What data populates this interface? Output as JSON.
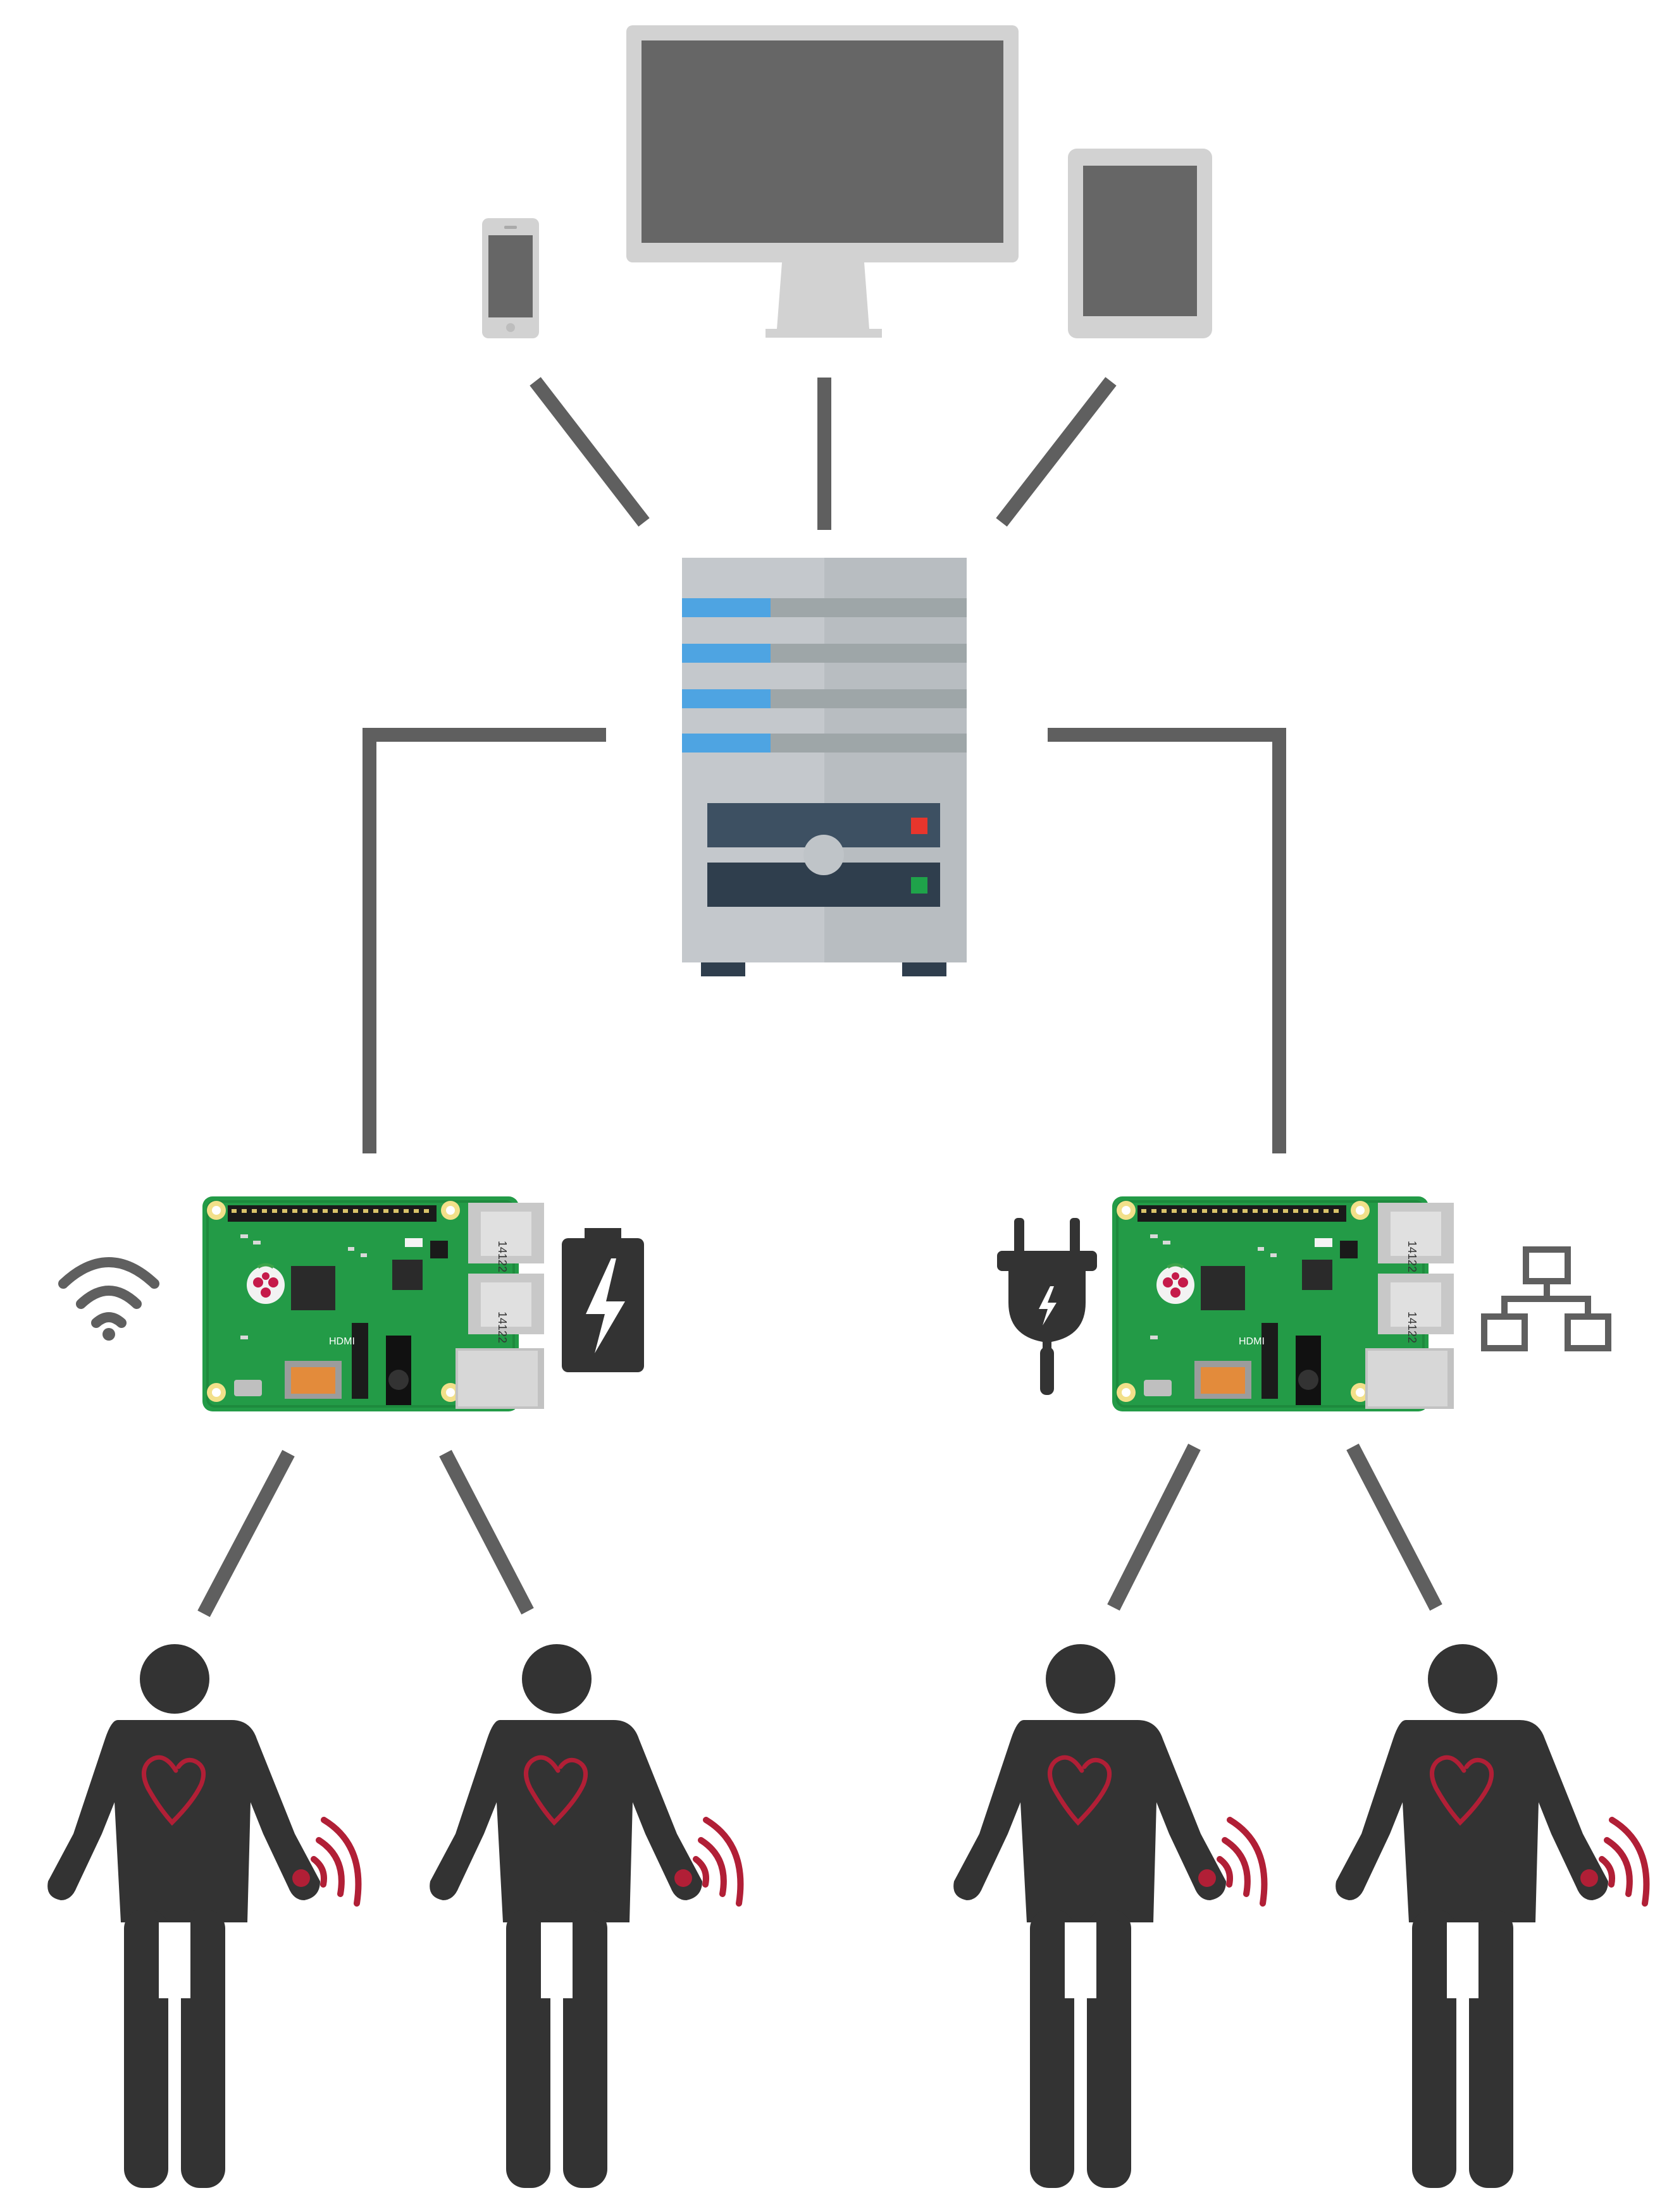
{
  "diagram": {
    "title": "",
    "colors": {
      "connector": "#5f5f5f",
      "device_frame": "#d2d2d2",
      "device_screen": "#666666",
      "server_body": "#c4c8cc",
      "server_stripe": "#9ea6a8",
      "server_led_blue": "#4ea4e2",
      "server_panel": "#3d5062",
      "led_red": "#e8352c",
      "led_green": "#1fa34a",
      "board_green": "#239b47",
      "icon_dark": "#333333",
      "person": "#333333",
      "heart_signal": "#b11f36"
    },
    "clients": [
      {
        "icon": "smartphone-icon"
      },
      {
        "icon": "desktop-monitor-icon"
      },
      {
        "icon": "tablet-icon"
      }
    ],
    "server": {
      "icon": "server-tower-icon"
    },
    "gateways": [
      {
        "name": "gateway-left",
        "connectivity_icon": "wifi-icon",
        "power_icon": "battery-charging-icon",
        "board_icon": "raspberry-pi-board-icon",
        "board_text": {
          "usb_label": "14122",
          "hdmi_label": "HDMI"
        }
      },
      {
        "name": "gateway-right",
        "connectivity_icon": "ethernet-network-icon",
        "power_icon": "power-plug-icon",
        "board_icon": "raspberry-pi-board-icon",
        "board_text": {
          "usb_label": "14122",
          "hdmi_label": "HDMI"
        }
      }
    ],
    "patients": [
      {
        "gateway": "gateway-left",
        "icon": "person-heart-sensor-icon"
      },
      {
        "gateway": "gateway-left",
        "icon": "person-heart-sensor-icon"
      },
      {
        "gateway": "gateway-right",
        "icon": "person-heart-sensor-icon"
      },
      {
        "gateway": "gateway-right",
        "icon": "person-heart-sensor-icon"
      }
    ]
  }
}
